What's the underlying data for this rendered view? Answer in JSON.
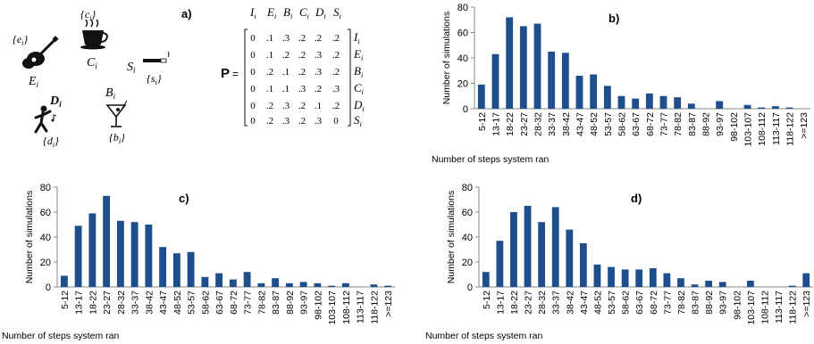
{
  "figure": {
    "panel_a": {
      "label": "a)",
      "matrix_symbol": "P",
      "equals": "=",
      "col_headers": [
        "I",
        "E",
        "B",
        "C",
        "D",
        "S"
      ],
      "row_headers": [
        "I",
        "E",
        "B",
        "C",
        "D",
        "S"
      ],
      "subscript": "i",
      "rows": [
        [
          "0",
          ".1",
          ".3",
          ".2",
          ".2",
          ".2"
        ],
        [
          "0",
          ".1",
          ".2",
          ".2",
          ".3",
          ".2"
        ],
        [
          "0",
          ".2",
          ".1",
          ".2",
          ".3",
          ".2"
        ],
        [
          "0",
          ".1",
          ".1",
          ".3",
          ".2",
          ".3"
        ],
        [
          "0",
          ".2",
          ".3",
          ".2",
          ".1",
          ".2"
        ],
        [
          "0",
          ".2",
          ".3",
          ".2",
          ".3",
          "0"
        ]
      ],
      "states": [
        {
          "main": "E",
          "set": "e",
          "icon": "guitar-icon"
        },
        {
          "main": "C",
          "set": "c",
          "icon": "coffee-cup-icon"
        },
        {
          "main": "S",
          "set": "s",
          "icon": "cigarette-icon"
        },
        {
          "main": "D",
          "set": "d",
          "icon": "dancer-icon"
        },
        {
          "main": "B",
          "set": "b",
          "icon": "cocktail-glass-icon"
        }
      ]
    },
    "y_axis_label": "Number of simulations",
    "x_axis_label": "Number of steps system ran",
    "categories": [
      "5-12",
      "13-17",
      "18-22",
      "23-27",
      "28-32",
      "33-37",
      "38-42",
      "43-47",
      "48-52",
      "53-57",
      "58-62",
      "63-67",
      "68-72",
      "73-77",
      "78-82",
      "83-87",
      "88-92",
      "93-97",
      "98-102",
      "103-107",
      "108-112",
      "113-117",
      "118-122",
      ">=123"
    ],
    "bar_color": "#1f4e8c"
  },
  "chart_data": [
    {
      "type": "bar",
      "label": "b)",
      "ylim": [
        0,
        80
      ],
      "yticks": [
        0,
        20,
        40,
        60,
        80
      ],
      "values": [
        19,
        43,
        72,
        65,
        67,
        45,
        44,
        26,
        27,
        18,
        10,
        8,
        12,
        10,
        9,
        4,
        0,
        6,
        0,
        3,
        1,
        2,
        1,
        0
      ]
    },
    {
      "type": "bar",
      "label": "c)",
      "ylim": [
        0,
        80
      ],
      "yticks": [
        0,
        20,
        40,
        60,
        80
      ],
      "values": [
        9,
        49,
        59,
        73,
        53,
        52,
        50,
        32,
        27,
        28,
        8,
        11,
        6,
        12,
        3,
        7,
        3,
        4,
        3,
        1,
        3,
        0,
        2,
        1
      ]
    },
    {
      "type": "bar",
      "label": "d)",
      "ylim": [
        0,
        80
      ],
      "yticks": [
        0,
        20,
        40,
        60,
        80
      ],
      "values": [
        12,
        37,
        60,
        65,
        52,
        64,
        46,
        35,
        18,
        16,
        14,
        14,
        15,
        11,
        7,
        2,
        5,
        4,
        0,
        5,
        0,
        0,
        1,
        11
      ]
    }
  ]
}
